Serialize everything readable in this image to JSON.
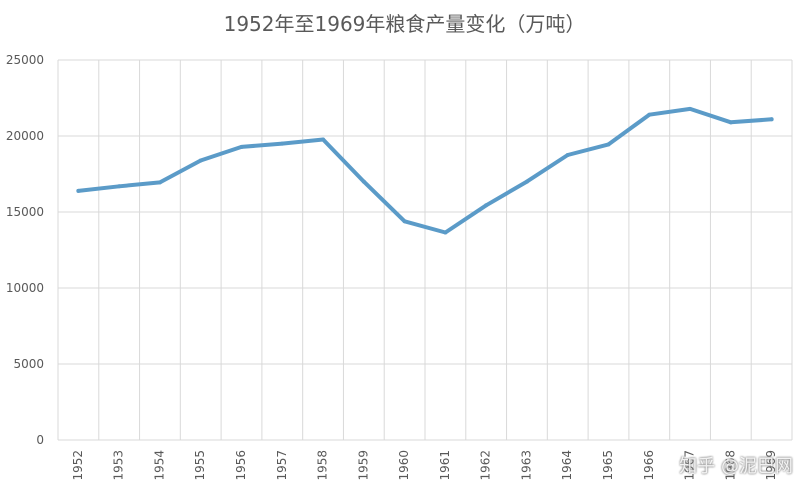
{
  "chart_data": {
    "type": "line",
    "title": "1952年至1969年粮食产量变化（万吨）",
    "categories": [
      "1952",
      "1953",
      "1954",
      "1955",
      "1956",
      "1957",
      "1958",
      "1959",
      "1960",
      "1961",
      "1962",
      "1963",
      "1964",
      "1965",
      "1966",
      "1967",
      "1968",
      "1969"
    ],
    "series": [
      {
        "values": [
          16390,
          16690,
          16950,
          18390,
          19280,
          19500,
          19770,
          17000,
          14390,
          13650,
          15440,
          17000,
          18750,
          19450,
          21400,
          21780,
          20900,
          21100
        ]
      }
    ],
    "xlabel": "",
    "ylabel": "",
    "ylim": [
      0,
      25000
    ],
    "yticks": [
      0,
      5000,
      10000,
      15000,
      20000,
      25000
    ],
    "grid": true,
    "legend": "none",
    "line_color": "#5b9bc8"
  },
  "watermark": "知乎 @泥巴网"
}
